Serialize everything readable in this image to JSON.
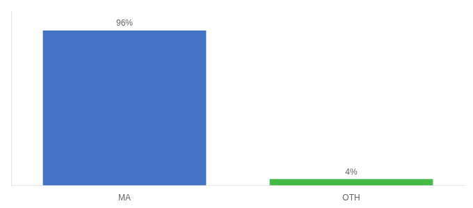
{
  "chart_data": {
    "type": "bar",
    "categories": [
      "MA",
      "OTH"
    ],
    "values": [
      96,
      4
    ],
    "value_labels": [
      "96%",
      "4%"
    ],
    "colors": [
      "#4472c4",
      "#44b944"
    ],
    "ylim": [
      0,
      108
    ],
    "grid": false,
    "data_labels": true,
    "tick_labels": "x"
  }
}
